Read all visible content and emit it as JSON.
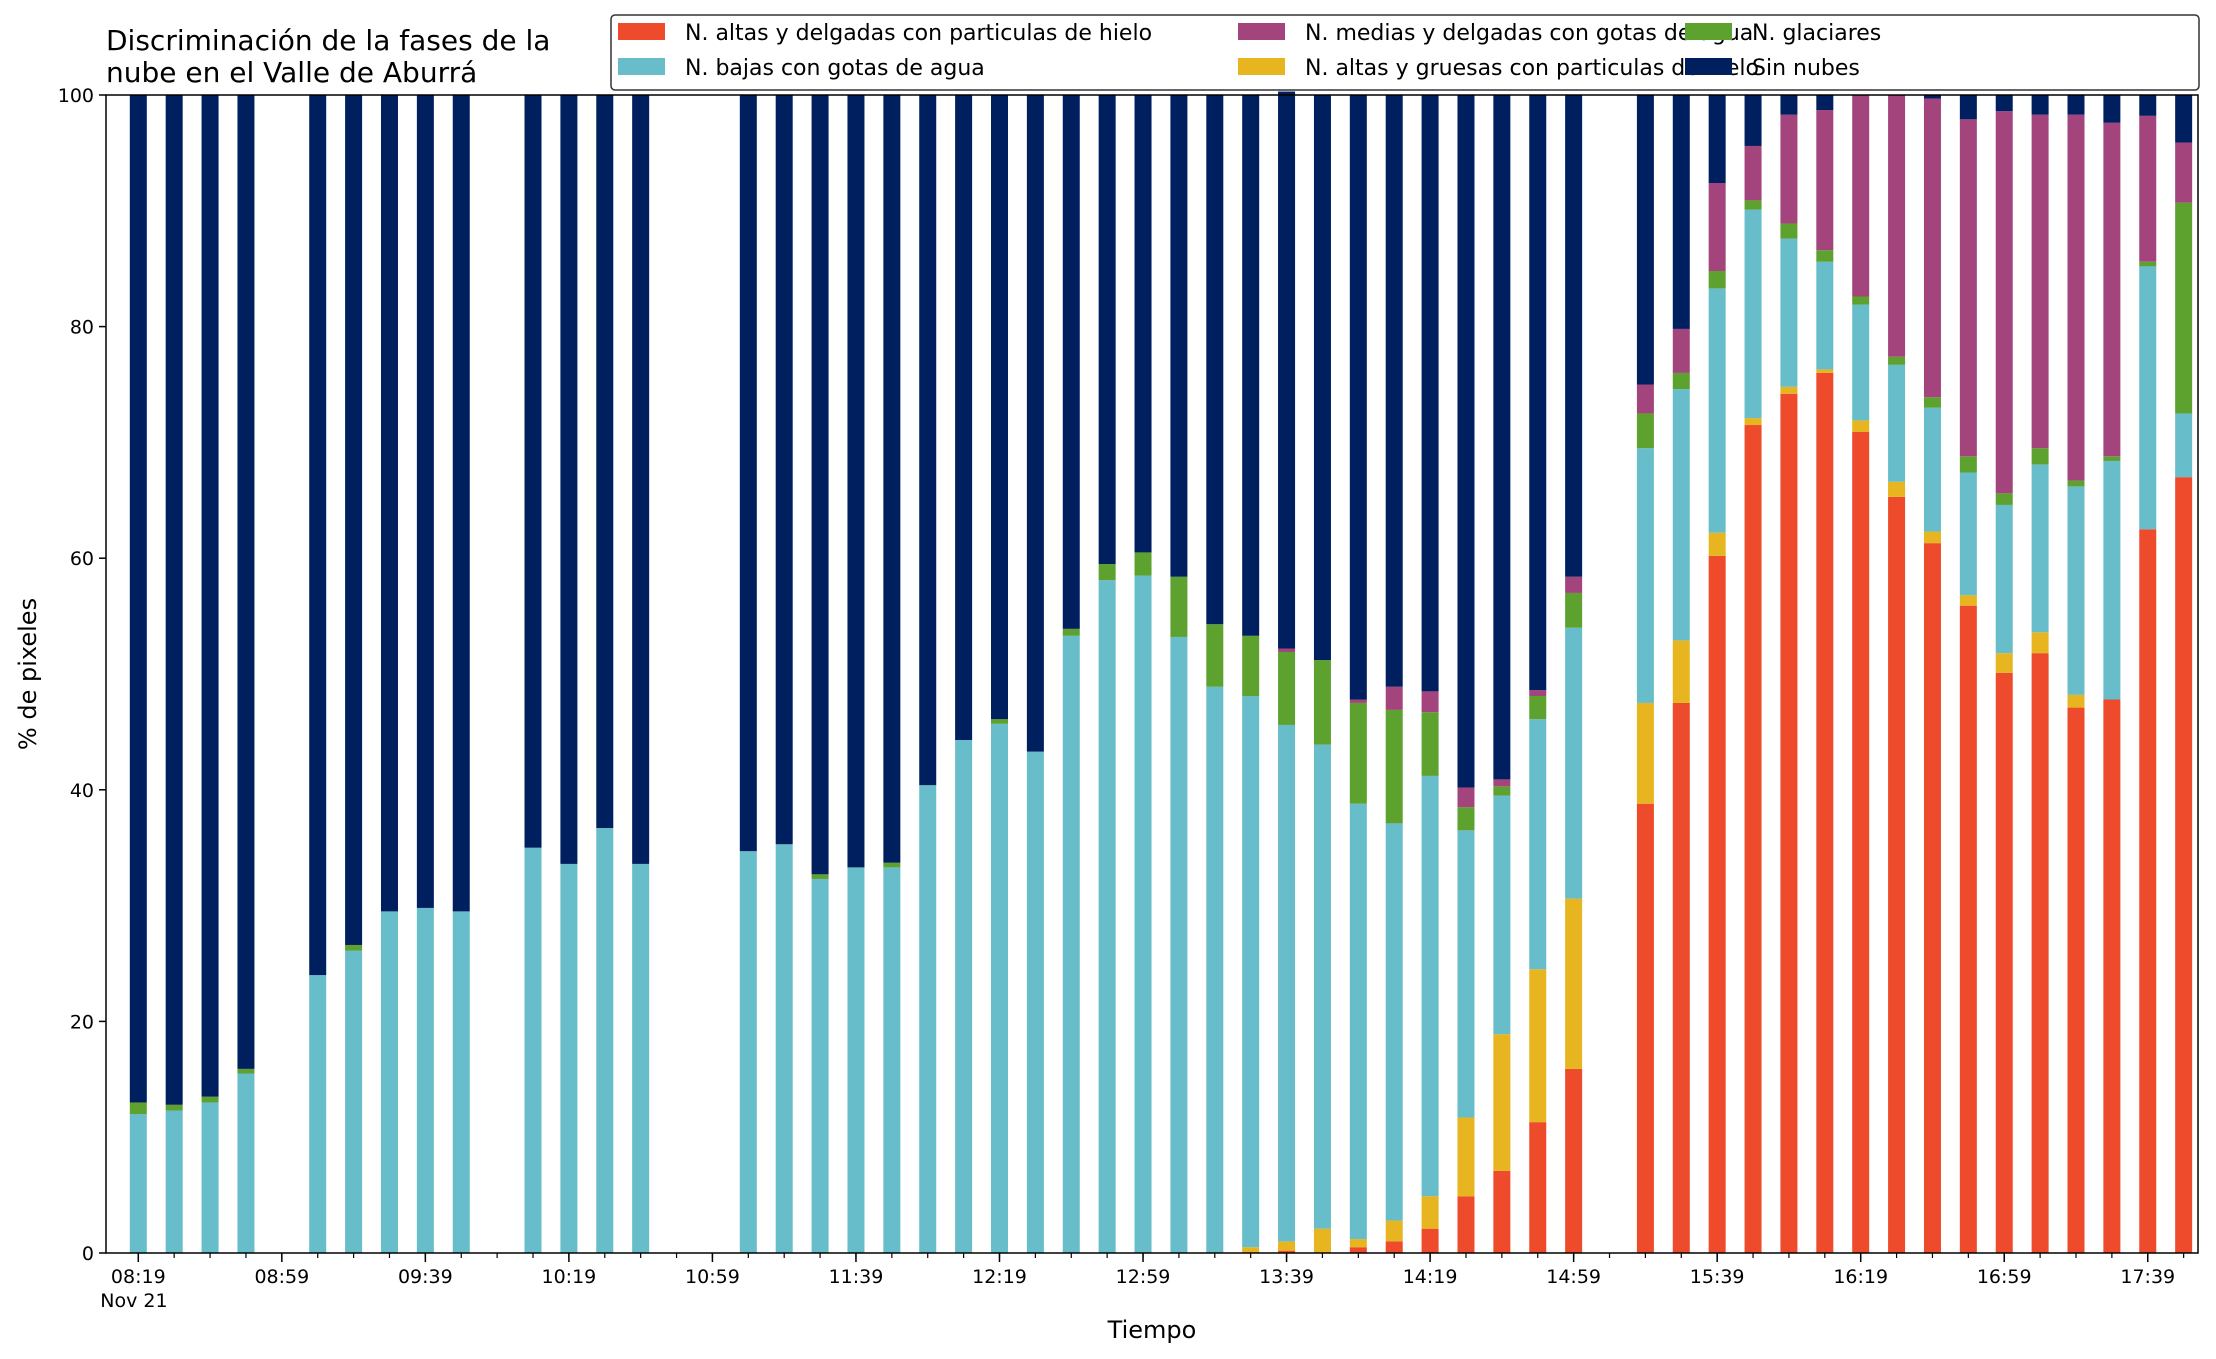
{
  "chart_data": {
    "type": "bar",
    "stacked": true,
    "title_lines": [
      "Discriminación de la fases de la",
      "nube en el Valle de Aburrá"
    ],
    "xlabel": "Tiempo",
    "ylabel": "% de pixeles",
    "ylim": [
      0,
      100
    ],
    "yticks": [
      0,
      20,
      40,
      60,
      80,
      100
    ],
    "x_range_minutes": [
      490,
      1073
    ],
    "x_tick_labels": [
      {
        "minute": 499,
        "label": "08:19",
        "sublabel": "Nov 21"
      },
      {
        "minute": 539,
        "label": "08:59"
      },
      {
        "minute": 579,
        "label": "09:39"
      },
      {
        "minute": 619,
        "label": "10:19"
      },
      {
        "minute": 659,
        "label": "10:59"
      },
      {
        "minute": 699,
        "label": "11:39"
      },
      {
        "minute": 739,
        "label": "12:19"
      },
      {
        "minute": 779,
        "label": "12:59"
      },
      {
        "minute": 819,
        "label": "13:39"
      },
      {
        "minute": 859,
        "label": "14:19"
      },
      {
        "minute": 899,
        "label": "14:59"
      },
      {
        "minute": 939,
        "label": "15:39"
      },
      {
        "minute": 979,
        "label": "16:19"
      },
      {
        "minute": 1019,
        "label": "16:59"
      },
      {
        "minute": 1059,
        "label": "17:39"
      }
    ],
    "grid": false,
    "legend_position": "top-right",
    "series": [
      {
        "name": "N. altas y delgadas con particulas de hielo",
        "color": "#ee4a2c"
      },
      {
        "name": "N. altas y gruesas con particulas de hielo",
        "color": "#e6b51f"
      },
      {
        "name": "N. bajas con gotas de agua",
        "color": "#67bdc9"
      },
      {
        "name": "N. glaciares",
        "color": "#5da12f"
      },
      {
        "name": "N. medias y delgadas con gotas de agua",
        "color": "#a3457c"
      },
      {
        "name": "Sin nubes",
        "color": "#001f5f"
      }
    ],
    "legend_order": [
      0,
      2,
      4,
      1,
      3,
      5
    ],
    "bars": [
      {
        "minute": 499,
        "values": [
          0,
          0,
          12.0,
          1.0,
          0,
          87.0
        ]
      },
      {
        "minute": 509,
        "values": [
          0,
          0,
          12.3,
          0.5,
          0,
          87.2
        ]
      },
      {
        "minute": 519,
        "values": [
          0,
          0,
          13.0,
          0.5,
          0,
          86.5
        ]
      },
      {
        "minute": 529,
        "values": [
          0,
          0,
          15.5,
          0.4,
          0,
          84.1
        ]
      },
      {
        "minute": 549,
        "values": [
          0,
          0,
          24.0,
          0,
          0,
          76.0
        ]
      },
      {
        "minute": 559,
        "values": [
          0,
          0,
          26.1,
          0.5,
          0,
          73.4
        ]
      },
      {
        "minute": 569,
        "values": [
          0,
          0,
          29.5,
          0,
          0,
          70.5
        ]
      },
      {
        "minute": 579,
        "values": [
          0,
          0,
          29.8,
          0,
          0,
          70.2
        ]
      },
      {
        "minute": 589,
        "values": [
          0,
          0,
          29.5,
          0,
          0,
          70.5
        ]
      },
      {
        "minute": 609,
        "values": [
          0,
          0,
          35.0,
          0,
          0,
          65.0
        ]
      },
      {
        "minute": 619,
        "values": [
          0,
          0,
          33.6,
          0,
          0,
          66.4
        ]
      },
      {
        "minute": 629,
        "values": [
          0,
          0,
          36.7,
          0,
          0,
          63.3
        ]
      },
      {
        "minute": 639,
        "values": [
          0,
          0,
          33.6,
          0,
          0,
          66.4
        ]
      },
      {
        "minute": 669,
        "values": [
          0,
          0,
          34.7,
          0,
          0,
          65.3
        ]
      },
      {
        "minute": 679,
        "values": [
          0,
          0,
          35.3,
          0,
          0,
          64.7
        ]
      },
      {
        "minute": 689,
        "values": [
          0,
          0,
          32.3,
          0.4,
          0,
          67.3
        ]
      },
      {
        "minute": 699,
        "values": [
          0,
          0,
          33.3,
          0,
          0,
          66.7
        ]
      },
      {
        "minute": 709,
        "values": [
          0,
          0,
          33.3,
          0.4,
          0,
          66.3
        ]
      },
      {
        "minute": 719,
        "values": [
          0,
          0,
          40.4,
          0,
          0,
          59.6
        ]
      },
      {
        "minute": 729,
        "values": [
          0,
          0,
          44.3,
          0,
          0,
          55.7
        ]
      },
      {
        "minute": 739,
        "values": [
          0,
          0,
          45.7,
          0.4,
          0,
          53.9
        ]
      },
      {
        "minute": 749,
        "values": [
          0,
          0,
          43.3,
          0,
          0,
          56.7
        ]
      },
      {
        "minute": 759,
        "values": [
          0,
          0,
          53.3,
          0.6,
          0,
          46.1
        ]
      },
      {
        "minute": 769,
        "values": [
          0,
          0,
          58.1,
          1.4,
          0,
          40.5
        ]
      },
      {
        "minute": 779,
        "values": [
          0,
          0,
          58.5,
          2.0,
          0,
          39.5
        ]
      },
      {
        "minute": 789,
        "values": [
          0,
          0,
          53.2,
          5.2,
          0,
          41.6
        ]
      },
      {
        "minute": 799,
        "values": [
          0,
          0,
          48.9,
          5.4,
          0,
          45.7
        ]
      },
      {
        "minute": 809,
        "values": [
          0,
          0.5,
          47.6,
          5.2,
          0,
          46.7
        ]
      },
      {
        "minute": 819,
        "values": [
          0.2,
          0.8,
          44.6,
          6.3,
          0.3,
          48.1
        ]
      },
      {
        "minute": 829,
        "values": [
          0,
          2.1,
          41.8,
          7.3,
          0,
          48.8
        ]
      },
      {
        "minute": 839,
        "values": [
          0.5,
          0.7,
          37.6,
          8.7,
          0.3,
          52.2
        ]
      },
      {
        "minute": 849,
        "values": [
          1.0,
          1.8,
          34.3,
          9.8,
          2.0,
          51.1
        ]
      },
      {
        "minute": 859,
        "values": [
          2.1,
          2.8,
          36.3,
          5.5,
          1.8,
          51.5
        ]
      },
      {
        "minute": 869,
        "values": [
          4.9,
          6.8,
          24.8,
          2.0,
          1.7,
          59.8
        ]
      },
      {
        "minute": 879,
        "values": [
          7.1,
          11.8,
          20.6,
          0.8,
          0.6,
          59.1
        ]
      },
      {
        "minute": 889,
        "values": [
          11.3,
          13.2,
          21.6,
          2.0,
          0.5,
          51.4
        ]
      },
      {
        "minute": 899,
        "values": [
          15.9,
          14.7,
          23.4,
          3.0,
          1.4,
          41.6
        ]
      },
      {
        "minute": 919,
        "values": [
          38.8,
          8.7,
          22.0,
          3.0,
          2.5,
          25.0
        ]
      },
      {
        "minute": 929,
        "values": [
          47.5,
          5.4,
          21.7,
          1.4,
          3.8,
          20.2
        ]
      },
      {
        "minute": 939,
        "values": [
          60.2,
          2.0,
          21.1,
          1.5,
          7.6,
          7.6
        ]
      },
      {
        "minute": 949,
        "values": [
          71.5,
          0.6,
          18.0,
          0.8,
          4.7,
          4.4
        ]
      },
      {
        "minute": 959,
        "values": [
          74.2,
          0.6,
          12.8,
          1.3,
          9.4,
          1.7
        ]
      },
      {
        "minute": 969,
        "values": [
          76.0,
          0.3,
          9.3,
          1.0,
          12.1,
          1.3
        ]
      },
      {
        "minute": 979,
        "values": [
          70.9,
          1.0,
          10.0,
          0.7,
          17.4,
          0
        ]
      },
      {
        "minute": 989,
        "values": [
          65.3,
          1.3,
          10.1,
          0.7,
          22.6,
          0
        ]
      },
      {
        "minute": 999,
        "values": [
          61.3,
          1.0,
          10.7,
          0.9,
          25.8,
          0.3
        ]
      },
      {
        "minute": 1009,
        "values": [
          55.9,
          0.9,
          10.6,
          1.4,
          29.1,
          2.1
        ]
      },
      {
        "minute": 1019,
        "values": [
          50.1,
          1.7,
          12.8,
          1.0,
          33.0,
          1.4
        ]
      },
      {
        "minute": 1029,
        "values": [
          51.8,
          1.8,
          14.5,
          1.4,
          28.8,
          1.7
        ]
      },
      {
        "minute": 1039,
        "values": [
          47.1,
          1.1,
          18.0,
          0.5,
          31.6,
          1.7
        ]
      },
      {
        "minute": 1049,
        "values": [
          47.8,
          0,
          20.6,
          0.4,
          28.8,
          2.4
        ]
      },
      {
        "minute": 1059,
        "values": [
          62.5,
          0,
          22.7,
          0.4,
          12.6,
          1.8
        ]
      },
      {
        "minute": 1069,
        "values": [
          67.0,
          0,
          5.5,
          18.2,
          5.2,
          4.1
        ]
      }
    ]
  }
}
